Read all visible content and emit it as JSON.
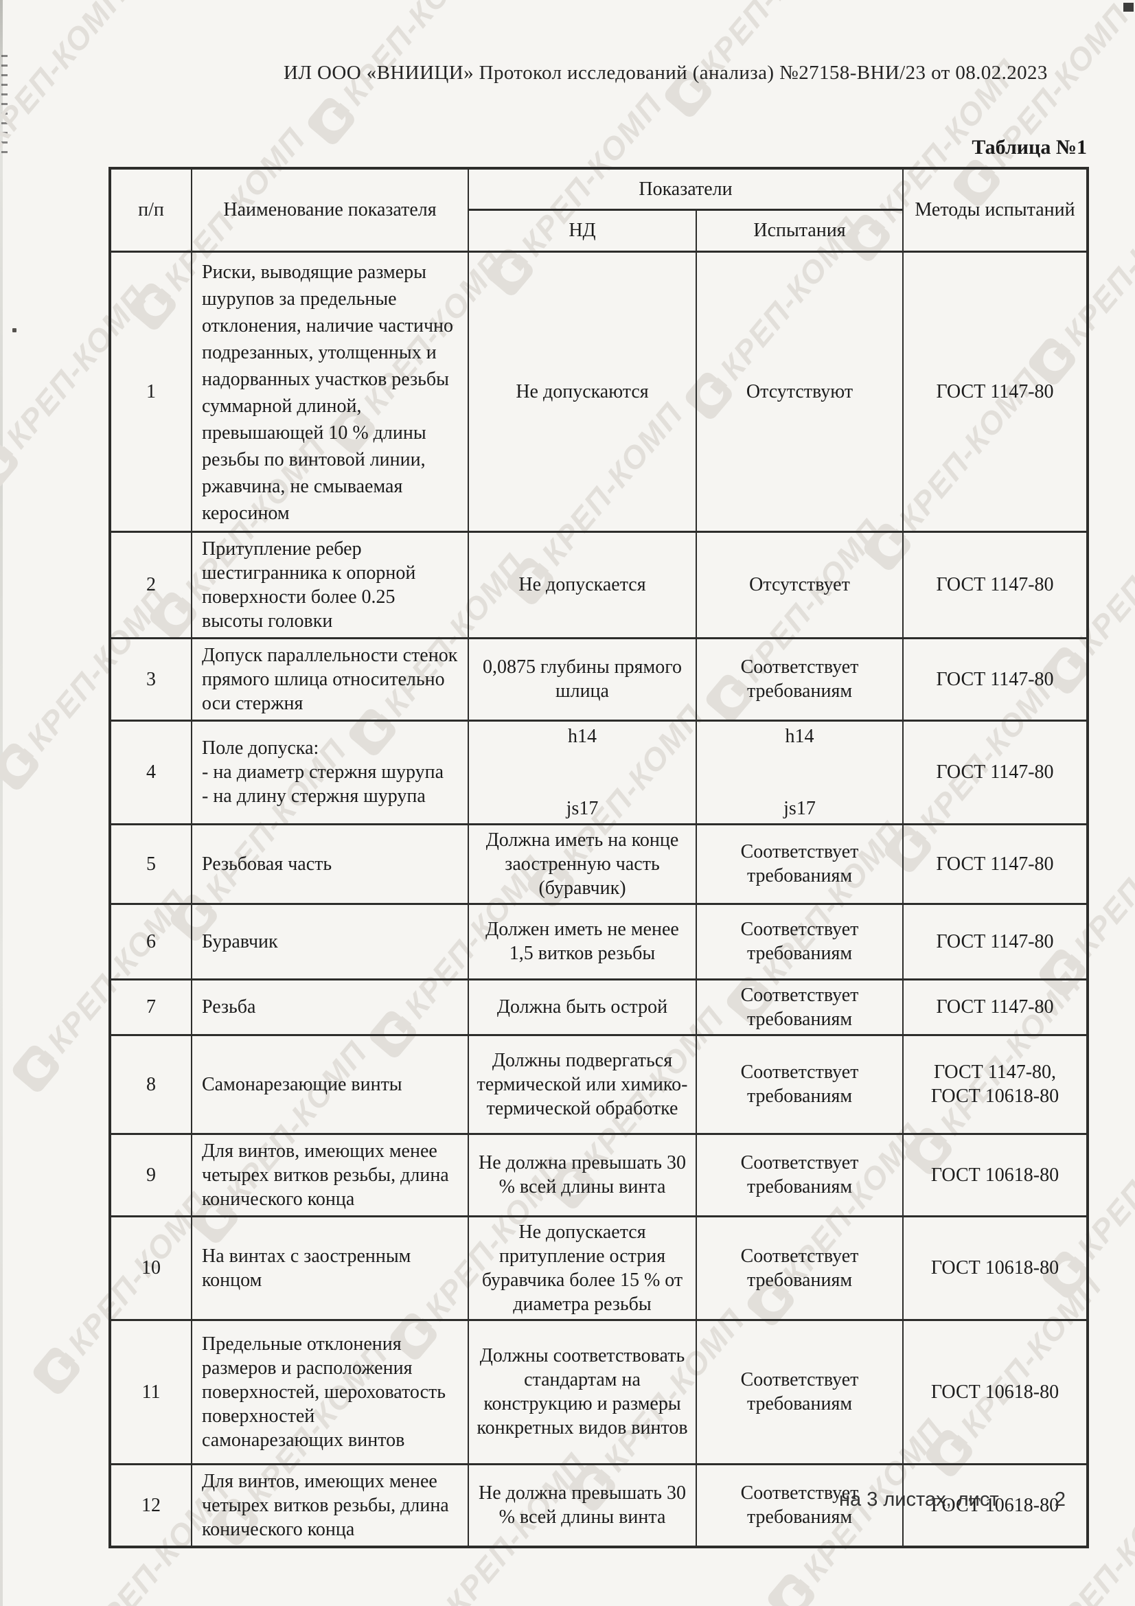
{
  "page": {
    "header_line": "ИЛ ООО «ВНИИЦИ» Протокол исследований (анализа) №27158-ВНИ/23 от 08.02.2023",
    "table_caption": "Таблица №1",
    "watermark_text": "КРЕП-КОМП",
    "footer": {
      "sheets_label": "на 3 листах, лист",
      "page_number": "2"
    }
  },
  "table": {
    "headers": {
      "num": "п/п",
      "name": "Наименование показателя",
      "indicators": "Показатели",
      "nd": "НД",
      "tests": "Испытания",
      "methods": "Методы испытаний"
    },
    "rows": [
      {
        "num": "1",
        "name": "Риски, выводящие размеры шурупов за предельные отклонения, наличие частично подрезанных, утолщенных и надорванных участков резьбы суммарной длиной, превышающей 10 % длины резьбы по винтовой линии, ржавчина, не смываемая керосином",
        "nd": "Не допускаются",
        "test": "Отсутствуют",
        "method": "ГОСТ 1147-80"
      },
      {
        "num": "2",
        "name": "Притупление ребер шестигранника к опорной поверхности более 0.25 высоты головки",
        "nd": "Не допускается",
        "test": "Отсутствует",
        "method": "ГОСТ 1147-80"
      },
      {
        "num": "3",
        "name": "Допуск параллельности стенок прямого шлица относительно оси стержня",
        "nd": "0,0875 глубины прямого шлица",
        "test": "Соответствует требованиям",
        "method": "ГОСТ 1147-80"
      },
      {
        "num": "4",
        "name": "Поле допуска:\n- на диаметр стержня шурупа\n- на длину стержня шурупа",
        "nd": "h14\n\n\njs17",
        "test": "h14\n\n\njs17",
        "method": "ГОСТ 1147-80"
      },
      {
        "num": "5",
        "name": "Резьбовая часть",
        "nd": "Должна иметь на конце заостренную часть (буравчик)",
        "test": "Соответствует требованиям",
        "method": "ГОСТ 1147-80"
      },
      {
        "num": "6",
        "name": "Буравчик",
        "nd": "Должен иметь не менее 1,5 витков резьбы",
        "test": "Соответствует требованиям",
        "method": "ГОСТ 1147-80"
      },
      {
        "num": "7",
        "name": "Резьба",
        "nd": "Должна быть острой",
        "test": "Соответствует требованиям",
        "method": "ГОСТ 1147-80"
      },
      {
        "num": "8",
        "name": "Самонарезающие винты",
        "nd": "Должны подвергаться термической или химико-термической обработке",
        "test": "Соответствует требованиям",
        "method": "ГОСТ 1147-80, ГОСТ 10618-80"
      },
      {
        "num": "9",
        "name": "Для винтов, имеющих менее четырех витков резьбы, длина конического конца",
        "nd": "Не должна превышать 30 % всей длины винта",
        "test": "Соответствует требованиям",
        "method": "ГОСТ 10618-80"
      },
      {
        "num": "10",
        "name": "На винтах с заостренным концом",
        "nd": "Не допускается притупление острия буравчика более 15 % от диаметра резьбы",
        "test": "Соответствует требованиям",
        "method": "ГОСТ 10618-80"
      },
      {
        "num": "11",
        "name": "Предельные отклонения размеров и расположения поверхностей, шероховатость поверхностей самонарезающих винтов",
        "nd": "Должны соответствовать стандартам на конструкцию и размеры конкретных видов винтов",
        "test": "Соответствует требованиям",
        "method": "ГОСТ 10618-80"
      },
      {
        "num": "12",
        "name": "Для винтов, имеющих менее четырех витков резьбы, длина конического конца",
        "nd": "Не должна превышать 30 % всей длины винта",
        "test": "Соответствует требованиям",
        "method": "ГОСТ 10618-80"
      }
    ]
  }
}
